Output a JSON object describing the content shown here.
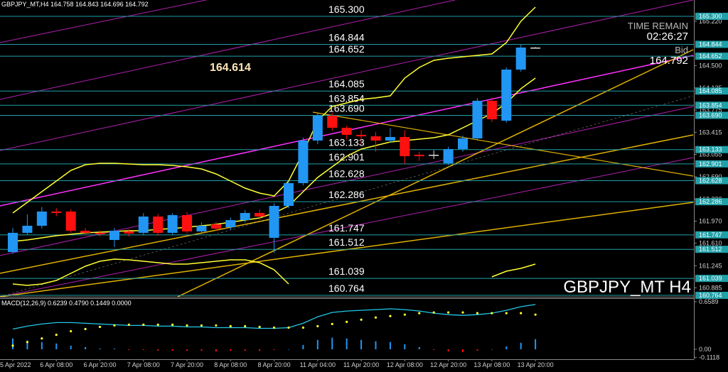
{
  "chart_data": {
    "type": "candlestick",
    "title": "GBPJPY_MT,H4 164.758 164.843 164.696 164.792",
    "watermark": "GBPJPY_MT H4",
    "annotation": 164.614,
    "time_remain_label": "TIME REMAIN",
    "time_remain": "02:26:27",
    "bid_label": "Bid",
    "bid": 164.792,
    "categories": [
      "5 Apr 2022",
      null,
      null,
      "6 Apr 08:00",
      null,
      null,
      "6 Apr 20:00",
      null,
      null,
      "7 Apr 08:00",
      null,
      null,
      "7 Apr 20:00",
      null,
      null,
      "8 Apr 08:00",
      null,
      null,
      "8 Apr 20:00",
      null,
      null,
      "11 Apr 04:00",
      null,
      null,
      "11 Apr 20:00",
      null,
      null,
      "12 Apr 08:00",
      null,
      null,
      "12 Apr 20:00",
      null,
      null,
      "13 Apr 08:00",
      null,
      null,
      "13 Apr 20:00"
    ],
    "open": [
      161.468,
      161.78,
      161.895,
      162.126,
      162.126,
      161.814,
      161.78,
      161.664,
      161.803,
      161.78,
      162.045,
      161.78,
      162.068,
      161.803,
      161.918,
      161.872,
      161.987,
      162.103,
      161.699,
      162.218,
      162.588,
      163.28,
      163.684,
      163.488,
      163.373,
      163.349,
      163.28,
      163.338,
      163.049,
      163.049,
      162.911,
      163.142,
      163.315,
      163.927,
      163.603,
      164.434,
      164.792
    ],
    "high": [
      161.86,
      162.08,
      162.2,
      162.18,
      162.16,
      161.86,
      161.82,
      161.86,
      161.84,
      162.1,
      162.09,
      162.1,
      162.12,
      161.95,
      161.96,
      162.03,
      162.15,
      162.16,
      162.26,
      162.62,
      163.33,
      163.72,
      163.73,
      163.52,
      163.45,
      163.42,
      163.48,
      163.45,
      163.1,
      163.12,
      163.18,
      163.36,
      163.97,
      163.98,
      164.47,
      164.84,
      164.8
    ],
    "low": [
      161.44,
      161.75,
      161.85,
      162.05,
      161.78,
      161.74,
      161.72,
      161.55,
      161.72,
      161.74,
      161.73,
      161.74,
      161.77,
      161.76,
      161.81,
      161.83,
      161.95,
      161.99,
      161.45,
      162.18,
      162.55,
      163.22,
      163.44,
      163.3,
      163.2,
      163.1,
      163.25,
      162.9,
      162.95,
      162.98,
      162.88,
      163.1,
      163.28,
      163.58,
      163.57,
      164.4,
      164.78
    ],
    "close": [
      161.78,
      161.895,
      162.126,
      162.103,
      161.814,
      161.78,
      161.757,
      161.814,
      161.768,
      162.045,
      161.78,
      162.068,
      161.803,
      161.895,
      161.849,
      161.987,
      162.103,
      162.045,
      162.218,
      162.588,
      163.28,
      163.684,
      163.488,
      163.373,
      163.349,
      163.28,
      163.338,
      163.026,
      163.026,
      163.049,
      163.142,
      163.315,
      163.927,
      163.626,
      164.434,
      164.792,
      164.792
    ],
    "up_color": "#2196f3",
    "down_color": "#ff1010",
    "doji_color": "#dddddd",
    "ylim": [
      160.741,
      165.565
    ],
    "yticks": [
      {
        "value": 165.22,
        "label": "165.220"
      },
      {
        "value": 164.5,
        "label": "164.500"
      },
      {
        "value": 164.135,
        "label": "164.135"
      },
      {
        "value": 163.775,
        "label": "163.775"
      },
      {
        "value": 163.415,
        "label": "163.415"
      },
      {
        "value": 163.055,
        "label": "163.055"
      },
      {
        "value": 162.69,
        "label": "162.690"
      },
      {
        "value": 162.33,
        "label": "162.330"
      },
      {
        "value": 161.97,
        "label": "161.970"
      },
      {
        "value": 161.61,
        "label": "161.610"
      },
      {
        "value": 161.245,
        "label": "161.245"
      },
      {
        "value": 160.885,
        "label": "160.885"
      }
    ],
    "levels": [
      {
        "value": 165.3,
        "label": "165.300"
      },
      {
        "value": 164.844,
        "label": "164.844"
      },
      {
        "value": 164.652,
        "label": "164.652"
      },
      {
        "value": 164.085,
        "label": "164.085"
      },
      {
        "value": 163.854,
        "label": "163.854"
      },
      {
        "value": 163.69,
        "label": "163.690"
      },
      {
        "value": 163.133,
        "label": "163.133"
      },
      {
        "value": 162.901,
        "label": "162.901"
      },
      {
        "value": 162.628,
        "label": "162.628"
      },
      {
        "value": 162.286,
        "label": "162.286"
      },
      {
        "value": 161.747,
        "label": "161.747"
      },
      {
        "value": 161.512,
        "label": "161.512"
      },
      {
        "value": 161.039,
        "label": "161.039"
      },
      {
        "value": 160.764,
        "label": "160.764"
      }
    ],
    "level_color": "#20a0a8",
    "series": [
      {
        "color": "#ffff33",
        "values": [
          162.103,
          162.276,
          162.449,
          162.622,
          162.795,
          162.888,
          162.911,
          162.911,
          162.899,
          162.888,
          162.888,
          162.876,
          162.853,
          162.818,
          162.738,
          162.622,
          162.507,
          162.426,
          162.38,
          162.622,
          163.084,
          163.603,
          163.834,
          163.892,
          163.95,
          163.973,
          164.007,
          164.296,
          164.469,
          164.584,
          164.619,
          164.642,
          164.665,
          164.688,
          164.873,
          165.219,
          165.45
        ]
      },
      {
        "color": "#ffff33",
        "values": [
          161.641,
          161.664,
          161.699,
          161.734,
          161.757,
          161.78,
          161.791,
          161.803,
          161.814,
          161.814,
          161.837,
          161.849,
          161.872,
          161.895,
          161.918,
          161.953,
          161.987,
          162.022,
          162.103,
          162.218,
          162.449,
          162.68,
          162.853,
          163.026,
          163.142,
          163.199,
          163.257,
          163.28,
          163.303,
          163.326,
          163.373,
          163.488,
          163.603,
          163.719,
          163.892,
          164.123,
          164.296
        ]
      },
      {
        "color": "#ffff33",
        "values": [
          160.949,
          160.926,
          160.949,
          161.006,
          161.122,
          161.237,
          161.318,
          161.353,
          161.341,
          161.318,
          161.295,
          161.272,
          161.272,
          161.295,
          161.318,
          161.341,
          161.341,
          161.295,
          161.18,
          160.949,
          null,
          null,
          null,
          null,
          null,
          null,
          null,
          null,
          null,
          null,
          null,
          null,
          null,
          161.064,
          161.156,
          161.203,
          161.272
        ]
      }
    ],
    "macd": {
      "label": "MACD(12,26,9) 0.6239 0.4790 0.1449 0.0000",
      "ylim": [
        -0.138,
        0.708
      ],
      "yticks": [
        0.6589,
        {
          "value": 0,
          "label": "0.00"
        },
        -0.1118
      ],
      "main": {
        "color": "#22c8e8",
        "values": [
          0.28,
          0.32,
          0.35,
          0.37,
          0.37,
          0.36,
          0.35,
          0.34,
          0.33,
          0.33,
          0.32,
          0.32,
          0.31,
          0.31,
          0.3,
          0.3,
          0.3,
          0.29,
          0.29,
          0.3,
          0.36,
          0.45,
          0.51,
          0.53,
          0.54,
          0.55,
          0.56,
          0.55,
          0.53,
          0.5,
          0.48,
          0.47,
          0.48,
          0.5,
          0.54,
          0.59,
          0.62
        ]
      },
      "signal": {
        "color": "#ffff33",
        "values": [
          0.05,
          0.1,
          0.15,
          0.2,
          0.25,
          0.28,
          0.31,
          0.33,
          0.34,
          0.34,
          0.34,
          0.34,
          0.33,
          0.33,
          0.33,
          0.32,
          0.32,
          0.31,
          0.3,
          0.3,
          0.3,
          0.32,
          0.35,
          0.38,
          0.41,
          0.44,
          0.46,
          0.48,
          0.5,
          0.51,
          0.51,
          0.51,
          0.5,
          0.5,
          0.5,
          0.5,
          0.48
        ]
      },
      "histogram": {
        "up_color": "#2196f3",
        "down_color": "#ff1010",
        "values": [
          0.15,
          0.12,
          0.1,
          0.08,
          0.05,
          0.03,
          0.01,
          0.01,
          -0.01,
          -0.01,
          -0.02,
          -0.02,
          -0.02,
          -0.02,
          -0.03,
          -0.02,
          -0.02,
          -0.02,
          -0.01,
          0.0,
          0.06,
          0.13,
          0.16,
          0.15,
          0.13,
          0.11,
          0.1,
          0.07,
          0.03,
          -0.01,
          -0.03,
          -0.04,
          -0.02,
          0.0,
          0.04,
          0.09,
          0.14
        ]
      }
    }
  }
}
